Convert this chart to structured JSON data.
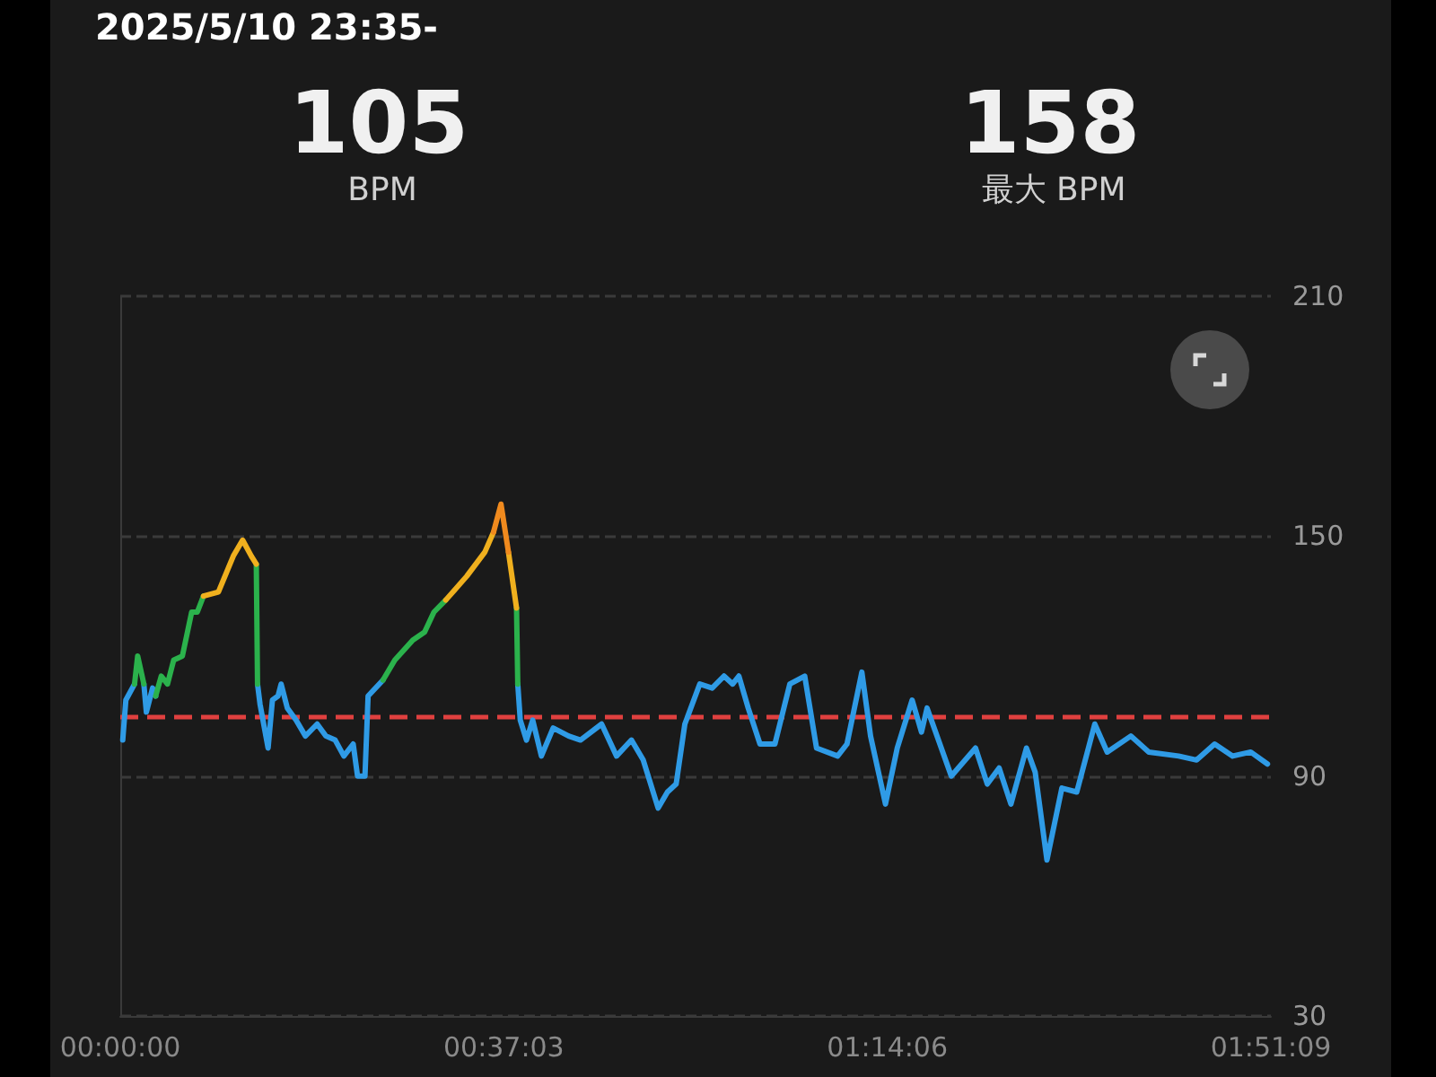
{
  "chart_data": {
    "type": "line",
    "title": "2025/5/10 23:35-",
    "annotations": [
      "105",
      "BPM",
      "158",
      "最大 BPM"
    ],
    "xlim": [
      0,
      1.8525
    ],
    "xticks": [
      {
        "value": 0,
        "label": "00:00:00"
      },
      {
        "value": 0.6175,
        "label": "00:37:03"
      },
      {
        "value": 1.235,
        "label": "01:14:06"
      },
      {
        "value": 1.8525,
        "label": "01:51:09"
      }
    ],
    "ylim": [
      30,
      210
    ],
    "yticks": [
      30,
      90,
      150,
      210
    ],
    "grid": "y",
    "marker": "none",
    "line_style": "solid",
    "ref_lines": [
      {
        "axis": "y",
        "value": 105,
        "color": "#e0403f",
        "line_style": "dashed"
      }
    ],
    "series": [
      {
        "color": "#2f9be6",
        "x": [
          0.004,
          0.009,
          0.023,
          0.03,
          0.038,
          0.042,
          0.052,
          0.057,
          0.14,
          0.221,
          0.225,
          0.238,
          0.245,
          0.254,
          0.259,
          0.269,
          0.283,
          0.298,
          0.317,
          0.331,
          0.346,
          0.36,
          0.375,
          0.382,
          0.394,
          0.399,
          0.423,
          0.5,
          0.64,
          0.644,
          0.654,
          0.664,
          0.678,
          0.697,
          0.722,
          0.741,
          0.775,
          0.799,
          0.823,
          0.842,
          0.866,
          0.881,
          0.895,
          0.909,
          0.933,
          0.953,
          0.972,
          0.986,
          0.996,
          1.011,
          1.03,
          1.054,
          1.078,
          1.102,
          1.121,
          1.155,
          1.17,
          1.194,
          1.208,
          1.232,
          1.251,
          1.275,
          1.29,
          1.299,
          1.338,
          1.377,
          1.396,
          1.415,
          1.434,
          1.459,
          1.473,
          1.492,
          1.516,
          1.54,
          1.569,
          1.589,
          1.627,
          1.656,
          1.704,
          1.733,
          1.762,
          1.791,
          1.82,
          1.847
        ],
        "values": [
          99,
          109,
          113,
          null,
          113,
          106,
          112,
          110,
          null,
          113,
          108,
          97,
          109,
          110,
          113,
          107,
          104,
          100,
          103,
          100,
          99,
          95,
          98,
          90,
          90,
          110,
          114,
          null,
          113,
          104,
          99,
          104,
          95,
          102,
          100,
          99,
          103,
          95,
          99,
          94,
          82,
          86,
          88,
          103,
          113,
          112,
          115,
          113,
          115,
          107,
          98,
          98,
          113,
          115,
          97,
          95,
          98,
          116,
          100,
          83,
          97,
          109,
          101,
          107,
          90,
          97,
          88,
          92,
          83,
          97,
          91,
          69,
          87,
          86,
          103,
          96,
          100,
          96,
          95,
          94,
          98,
          95,
          96,
          93
        ]
      },
      {
        "color": "#2bb24c",
        "x": [
          0.023,
          0.028,
          0.038,
          0.045,
          0.057,
          0.066,
          0.076,
          0.086,
          0.1,
          0.115,
          0.124,
          0.134,
          0.17,
          0.219,
          0.221,
          0.3,
          0.423,
          0.442,
          0.471,
          0.49,
          0.505,
          0.524,
          0.58,
          0.638,
          0.64
        ],
        "values": [
          113,
          120,
          113,
          null,
          110,
          115,
          113,
          119,
          120,
          131,
          131,
          135,
          null,
          143,
          113,
          null,
          114,
          119,
          124,
          126,
          131,
          134,
          null,
          132,
          113
        ]
      },
      {
        "color": "#f0b01e",
        "x": [
          0.134,
          0.158,
          0.182,
          0.197,
          0.211,
          0.219,
          0.3,
          0.524,
          0.558,
          0.587,
          0.601,
          0.61,
          0.625,
          0.638
        ],
        "values": [
          135,
          136,
          145,
          149,
          145,
          143,
          null,
          134,
          140,
          146,
          151,
          null,
          146,
          132
        ]
      },
      {
        "color": "#f08a1e",
        "x": [
          0.601,
          0.613,
          0.625
        ],
        "values": [
          151,
          158,
          146
        ]
      }
    ]
  }
}
